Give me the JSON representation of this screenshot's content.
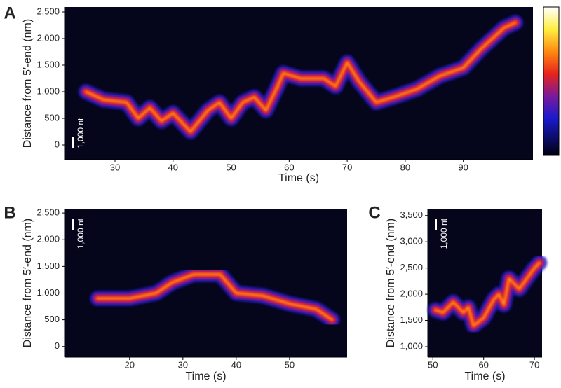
{
  "chart_data": [
    {
      "type": "line",
      "panel_label": "A",
      "xlabel": "Time (s)",
      "ylabel": "Distance from 5′-end (nm)",
      "scale_bar_label": "1,000 nt",
      "color": "#e8231c",
      "x": [
        25,
        28,
        32,
        34,
        36,
        38,
        40,
        43,
        46,
        48,
        50,
        52,
        54,
        56,
        58,
        59,
        62,
        66,
        68,
        70,
        72,
        75,
        78,
        82,
        86,
        90,
        93,
        97,
        99
      ],
      "values": [
        1000,
        850,
        800,
        500,
        700,
        450,
        600,
        250,
        650,
        800,
        500,
        800,
        900,
        650,
        1100,
        1350,
        1250,
        1250,
        1100,
        1550,
        1200,
        800,
        900,
        1050,
        1300,
        1450,
        1800,
        2200,
        2300
      ],
      "xlim": [
        21.3,
        102
      ],
      "ylim": [
        -276,
        2592
      ],
      "xticks": [
        30,
        40,
        50,
        60,
        70,
        80,
        90
      ],
      "yticks": [
        0,
        500,
        {
          "value": 1000,
          "label": "1,000"
        },
        {
          "value": 1500,
          "label": "1,500"
        },
        {
          "value": 2000,
          "label": "2,000"
        },
        {
          "value": 2500,
          "label": "2,500"
        }
      ]
    },
    {
      "type": "line",
      "panel_label": "B",
      "xlabel": "Time (s)",
      "ylabel": "Distance from 5′-end (nm)",
      "scale_bar_label": "1,000 nt",
      "color": "#e8231c",
      "x": [
        14,
        20,
        25,
        28,
        32,
        37,
        40,
        45,
        50,
        55,
        58
      ],
      "values": [
        900,
        900,
        1000,
        1200,
        1350,
        1350,
        1000,
        950,
        800,
        700,
        500
      ],
      "xlim": [
        7.8,
        60.8
      ],
      "ylim": [
        -200,
        2580
      ],
      "xticks": [
        20,
        30,
        40,
        50
      ],
      "yticks": [
        0,
        500,
        {
          "value": 1000,
          "label": "1,000"
        },
        {
          "value": 1500,
          "label": "1,500"
        },
        {
          "value": 2000,
          "label": "2,000"
        },
        {
          "value": 2500,
          "label": "2,500"
        }
      ]
    },
    {
      "type": "line",
      "panel_label": "C",
      "xlabel": "Time (s)",
      "ylabel": "Distance from 5′-end (nm)",
      "scale_bar_label": "1,000 nt",
      "color": "#e8231c",
      "x": [
        50.5,
        52,
        54,
        56,
        57,
        58,
        60,
        62,
        63,
        64,
        65,
        67,
        70,
        71
      ],
      "values": [
        1700,
        1650,
        1850,
        1650,
        1750,
        1400,
        1550,
        1900,
        2000,
        1800,
        2300,
        2100,
        2500,
        2600
      ],
      "xlim": [
        49,
        71.5
      ],
      "ylim": [
        800,
        3630
      ],
      "xticks": [
        50,
        60,
        70
      ],
      "yticks": [
        {
          "value": 1000,
          "label": "1,000"
        },
        {
          "value": 1500,
          "label": "1,500"
        },
        {
          "value": 2000,
          "label": "2,000"
        },
        {
          "value": 2500,
          "label": "2,500"
        },
        {
          "value": 3000,
          "label": "3,000"
        },
        {
          "value": 3500,
          "label": "3,500"
        }
      ]
    }
  ]
}
